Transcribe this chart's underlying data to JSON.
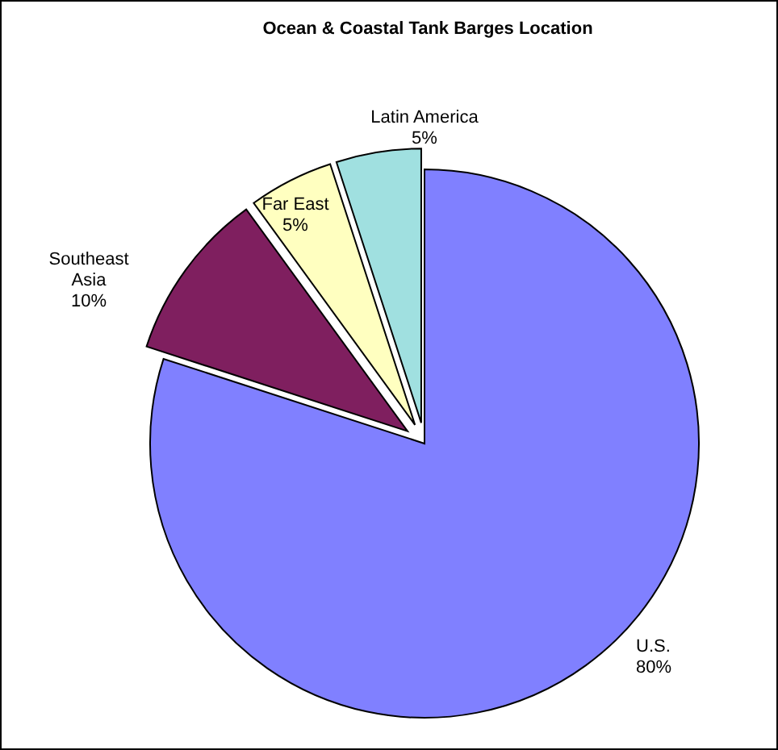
{
  "chart_data": {
    "type": "pie",
    "title": "Ocean & Coastal Tank Barges Location",
    "categories": [
      "U.S.",
      "Southeast Asia",
      "Far East",
      "Latin America"
    ],
    "values": [
      80,
      10,
      5,
      5
    ],
    "value_labels": [
      "80%",
      "10%",
      "5%",
      "5%"
    ],
    "colors": [
      "#8080ff",
      "#7f1f5f",
      "#ffffc0",
      "#a0e0e0"
    ]
  }
}
